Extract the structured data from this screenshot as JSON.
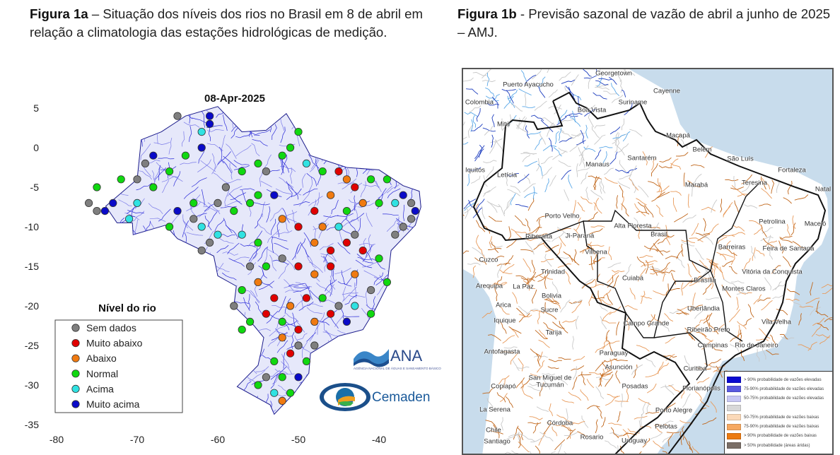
{
  "figure_a": {
    "caption_label": "Figura 1a",
    "caption_text": " – Situação dos níveis dos rios no Brasil em 8 de abril em relação a climatologia das estações hidrológicas de medição.",
    "chart_data": {
      "type": "scatter",
      "title": "08-Apr-2025",
      "x_ticks": [
        "-80",
        "-70",
        "-60",
        "-50",
        "-40"
      ],
      "y_ticks": [
        "5",
        "0",
        "-5",
        "-10",
        "-15",
        "-20",
        "-25",
        "-30",
        "-35"
      ],
      "xlim": [
        -81,
        -33
      ],
      "ylim": [
        -35,
        5
      ],
      "legend_title": "Nível do rio",
      "legend_placement": "bottom-left",
      "categories": [
        {
          "label": "Sem dados",
          "color": "#7f7f7f"
        },
        {
          "label": "Muito abaixo",
          "color": "#e00000"
        },
        {
          "label": "Abaixo",
          "color": "#f07a10"
        },
        {
          "label": "Normal",
          "color": "#10d810"
        },
        {
          "label": "Acima",
          "color": "#30e2e2"
        },
        {
          "label": "Muito acima",
          "color": "#0a0ac8"
        }
      ],
      "points": [
        [
          -68,
          -1,
          5
        ],
        [
          -69,
          -2,
          0
        ],
        [
          -70,
          -4,
          0
        ],
        [
          -72,
          -4,
          3
        ],
        [
          -75,
          -8,
          0
        ],
        [
          -74,
          -8,
          5
        ],
        [
          -73,
          -7,
          5
        ],
        [
          -71,
          -9,
          4
        ],
        [
          -68,
          -5,
          3
        ],
        [
          -66,
          -3,
          3
        ],
        [
          -64,
          -1,
          3
        ],
        [
          -62,
          0,
          5
        ],
        [
          -61,
          3,
          5
        ],
        [
          -61,
          4,
          5
        ],
        [
          -62,
          2,
          4
        ],
        [
          -65,
          4,
          0
        ],
        [
          -63,
          -7,
          3
        ],
        [
          -65,
          -8,
          5
        ],
        [
          -66,
          -10,
          3
        ],
        [
          -63,
          -9,
          0
        ],
        [
          -62,
          -10,
          4
        ],
        [
          -61,
          -12,
          0
        ],
        [
          -60,
          -11,
          4
        ],
        [
          -62,
          -13,
          0
        ],
        [
          -59,
          -5,
          0
        ],
        [
          -57,
          -3,
          3
        ],
        [
          -56,
          -7,
          3
        ],
        [
          -54,
          -3,
          0
        ],
        [
          -52,
          -1,
          3
        ],
        [
          -51,
          0,
          3
        ],
        [
          -50,
          2,
          3
        ],
        [
          -53,
          -6,
          5
        ],
        [
          -55,
          -6,
          3
        ],
        [
          -55,
          -2,
          3
        ],
        [
          -49,
          -2,
          4
        ],
        [
          -47,
          -3,
          3
        ],
        [
          -45,
          -3,
          1
        ],
        [
          -44,
          -4,
          2
        ],
        [
          -43,
          -5,
          1
        ],
        [
          -41,
          -4,
          3
        ],
        [
          -39,
          -4,
          3
        ],
        [
          -37,
          -6,
          5
        ],
        [
          -36,
          -7,
          0
        ],
        [
          -35.5,
          -8,
          5
        ],
        [
          -36,
          -9,
          0
        ],
        [
          -37,
          -10,
          0
        ],
        [
          -38,
          -11,
          0
        ],
        [
          -38,
          -7,
          4
        ],
        [
          -40,
          -7,
          3
        ],
        [
          -42,
          -7,
          2
        ],
        [
          -44,
          -8,
          3
        ],
        [
          -46,
          -6,
          2
        ],
        [
          -48,
          -8,
          1
        ],
        [
          -47,
          -10,
          2
        ],
        [
          -45,
          -10,
          4
        ],
        [
          -43,
          -11,
          0
        ],
        [
          -42,
          -13,
          1
        ],
        [
          -44,
          -12,
          1
        ],
        [
          -40,
          -14,
          3
        ],
        [
          -39,
          -17,
          3
        ],
        [
          -41,
          -18,
          0
        ],
        [
          -43,
          -16,
          2
        ],
        [
          -46,
          -15,
          1
        ],
        [
          -48,
          -16,
          2
        ],
        [
          -50,
          -15,
          1
        ],
        [
          -52,
          -14,
          0
        ],
        [
          -54,
          -15,
          3
        ],
        [
          -56,
          -15,
          0
        ],
        [
          -57,
          -18,
          3
        ],
        [
          -55,
          -17,
          2
        ],
        [
          -53,
          -19,
          1
        ],
        [
          -51,
          -20,
          2
        ],
        [
          -49,
          -19,
          1
        ],
        [
          -47,
          -19,
          3
        ],
        [
          -45,
          -20,
          0
        ],
        [
          -43,
          -20,
          4
        ],
        [
          -41,
          -21,
          3
        ],
        [
          -44,
          -22,
          5
        ],
        [
          -46,
          -21,
          1
        ],
        [
          -48,
          -22,
          2
        ],
        [
          -50,
          -23,
          1
        ],
        [
          -52,
          -22,
          3
        ],
        [
          -54,
          -21,
          1
        ],
        [
          -56,
          -22,
          3
        ],
        [
          -52,
          -24,
          2
        ],
        [
          -50,
          -25,
          0
        ],
        [
          -48,
          -25,
          0
        ],
        [
          -49,
          -27,
          3
        ],
        [
          -51,
          -26,
          1
        ],
        [
          -53,
          -27,
          3
        ],
        [
          -52,
          -29,
          3
        ],
        [
          -54,
          -29,
          0
        ],
        [
          -55,
          -30,
          3
        ],
        [
          -50,
          -29,
          5
        ],
        [
          -51,
          -31,
          3
        ],
        [
          -52,
          -32,
          2
        ],
        [
          -53,
          -31,
          4
        ],
        [
          -57,
          -23,
          3
        ],
        [
          -58,
          -20,
          0
        ],
        [
          -55,
          -12,
          3
        ],
        [
          -50,
          -10,
          1
        ],
        [
          -52,
          -9,
          2
        ],
        [
          -48,
          -12,
          2
        ],
        [
          -46,
          -13,
          1
        ],
        [
          -57,
          -11,
          4
        ],
        [
          -58,
          -8,
          3
        ],
        [
          -60,
          -7,
          0
        ],
        [
          -76,
          -7,
          0
        ],
        [
          -75,
          -5,
          3
        ],
        [
          -70,
          -7,
          4
        ]
      ]
    },
    "logos": {
      "ana": "ANA",
      "ana_sub": "AGÊNCIA NACIONAL DE ÁGUAS E SANEAMENTO BÁSICO",
      "cemaden": "Cemaden"
    }
  },
  "figure_b": {
    "caption_label": "Figura 1b",
    "caption_text": " - Previsão sazonal de vazão de abril a junho de 2025 – AMJ.",
    "colors": {
      "ocean": "#c8dcec",
      "high": "#1f3fbf",
      "low": "#c0661a",
      "neutral": "#c8c8c8"
    },
    "cities": [
      "Georgetown",
      "Puerto Ayacucho",
      "Cayenne",
      "Colombia",
      "Suriname",
      "Boa Vista",
      "Mitú",
      "Macapá",
      "Belém",
      "Santarém",
      "Manaus",
      "São Luís",
      "Fortaleza",
      "Iquitos",
      "Letícia",
      "Marabá",
      "Teresina",
      "Natal",
      "Porto Velho",
      "Alta Floresta",
      "Petrolina",
      "Maceió",
      "Riberalta",
      "Ji-Paraná",
      "Brasil",
      "Barreiras",
      "Feira de Santana",
      "Vilhena",
      "Cuzco",
      "Trinidad",
      "Vitória da Conquista",
      "Cuiabá",
      "Arequipa",
      "La Paz",
      "Brasília",
      "Montes Claros",
      "Bolivia",
      "Arica",
      "Sucre",
      "Uberlândia",
      "Iquique",
      "Campo Grande",
      "Vila Velha",
      "Ribeirão Preto",
      "Tarija",
      "Campinas",
      "Rio de Janeiro",
      "Antofagasta",
      "Paraguay",
      "Asunción",
      "Curitiba",
      "San Miguel de",
      "Tucumán",
      "Copiapó",
      "Posadas",
      "Florianópolis",
      "La Serena",
      "Porto Alegre",
      "Córdoba",
      "Chile",
      "Pelotas",
      "Santiago",
      "Rosario",
      "Uruguay"
    ],
    "legend": [
      {
        "label": ">  90% probabilidade de vazões elevadas",
        "color": "#0a0ad0"
      },
      {
        "label": "75-90% probabilidade de vazões elevadas",
        "color": "#5a5ae0"
      },
      {
        "label": "50-75% probabilidade de vazões elevadas",
        "color": "#c8c8f4"
      },
      {
        "label": "",
        "color": "#d8d8d8"
      },
      {
        "label": "50-75% probabilidade de vazões baixas",
        "color": "#fbd9b8"
      },
      {
        "label": "75-90% probabilidade de vazões baixas",
        "color": "#f6a860"
      },
      {
        "label": ">  90% probabilidade de vazões baixas",
        "color": "#ec7a10"
      },
      {
        "label": ">  50% probabilidade (áreas áridas)",
        "color": "#7a6e66"
      }
    ]
  }
}
